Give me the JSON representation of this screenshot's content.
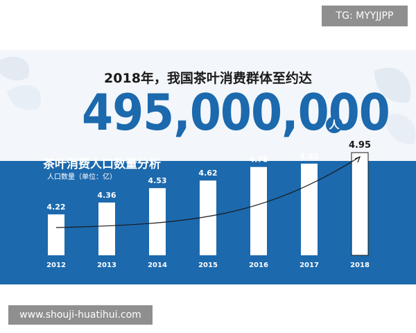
{
  "watermarks": {
    "top": "TG: MYYJJPP",
    "bottom": "www.shouji-huatihui.com"
  },
  "headline": "2018年，我国茶叶消费群体至约达",
  "big_number": "495,000,000",
  "big_number_unit": "人",
  "chart_data": {
    "type": "bar",
    "title": "茶叶消费人口数量分析",
    "ylabel": "人口数量（单位：亿）",
    "xlabel": "",
    "categories": [
      "2012",
      "2013",
      "2014",
      "2015",
      "2016",
      "2017",
      "2018"
    ],
    "values": [
      4.22,
      4.36,
      4.53,
      4.62,
      4.78,
      4.82,
      4.95
    ],
    "value_labels": [
      "4.22",
      "4.36",
      "4.53",
      "4.62",
      "4.78",
      "4.82",
      "4.95"
    ],
    "trend_line": true,
    "grid": false,
    "colors": {
      "panel": "#1c69ad",
      "bar": "#ffffff",
      "text": "#ffffff"
    }
  }
}
